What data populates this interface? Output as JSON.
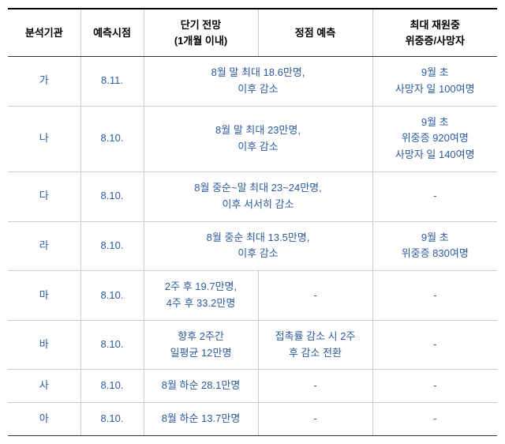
{
  "headers": {
    "org": "분석기관",
    "time": "예측시점",
    "short": "단기 전망\n(1개월 이내)",
    "peak": "정점 예측",
    "max": "최대 재원중\n위중증/사망자"
  },
  "rows": [
    {
      "org": "가",
      "time": "8.11.",
      "mergedForecast": "8월 말 최대 18.6만명,\n이후 감소",
      "max": "9월 초\n사망자 일 100여명"
    },
    {
      "org": "나",
      "time": "8.10.",
      "mergedForecast": "8월 말 최대 23만명,\n이후 감소",
      "max": "9월 초\n위중증 920여명\n사망자 일 140여명"
    },
    {
      "org": "다",
      "time": "8.10.",
      "mergedForecast": "8월 중순~말 최대 23~24만명,\n이후 서서히 감소",
      "max": "-"
    },
    {
      "org": "라",
      "time": "8.10.",
      "mergedForecast": "8월 중순 최대 13.5만명,\n이후 감소",
      "max": "9월 초\n위중증 830여명"
    },
    {
      "org": "마",
      "time": "8.10.",
      "short": "2주 후 19.7만명,\n4주 후 33.2만명",
      "peak": "-",
      "max": "-"
    },
    {
      "org": "바",
      "time": "8.10.",
      "short": "향후 2주간\n일평균 12만명",
      "peak": "접촉률 감소 시 2주\n후 감소 전환",
      "max": "-"
    },
    {
      "org": "사",
      "time": "8.10.",
      "short": "8월 하순 28.1만명",
      "peak": "-",
      "max": "-"
    },
    {
      "org": "아",
      "time": "8.10.",
      "short": "8월 하순 13.7만명",
      "peak": "-",
      "max": "-"
    }
  ]
}
